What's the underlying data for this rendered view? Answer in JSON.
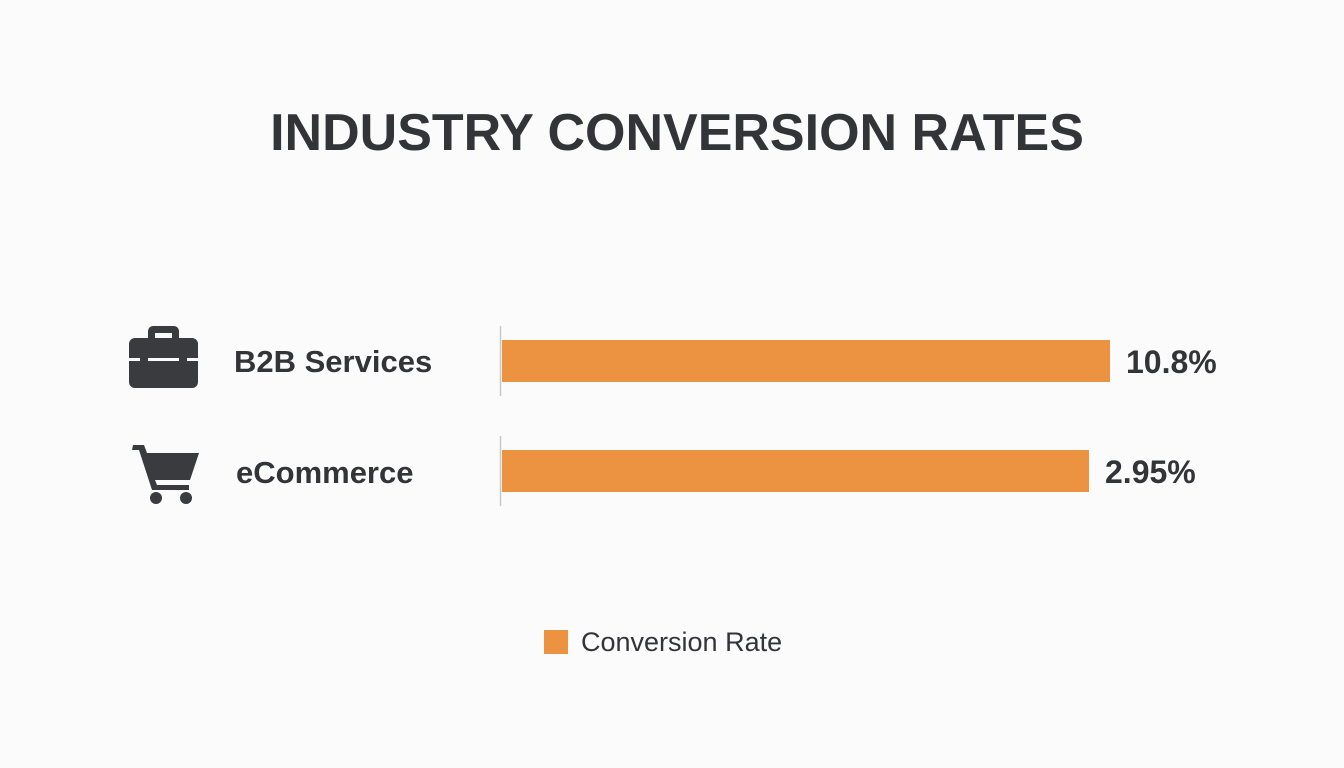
{
  "chart_data": {
    "type": "bar",
    "orientation": "horizontal",
    "title": "INDUSTRY CONVERSION RATES",
    "categories": [
      "B2B Services",
      "eCommerce"
    ],
    "category_icons": [
      "briefcase-icon",
      "shopping-cart-icon"
    ],
    "series": [
      {
        "name": "Conversion Rate",
        "values": [
          10.8,
          2.95
        ],
        "value_labels": [
          "10.8%",
          "2.95%"
        ],
        "color": "#eb9340"
      }
    ],
    "legend": {
      "position": "bottom-center",
      "items": [
        "Conversion Rate"
      ]
    },
    "grid": false,
    "colors": {
      "bar": "#eb9340",
      "text": "#333438",
      "axis": "#c9c9c9",
      "icon": "#3a3b3f",
      "background": "#fbfbfb"
    }
  }
}
